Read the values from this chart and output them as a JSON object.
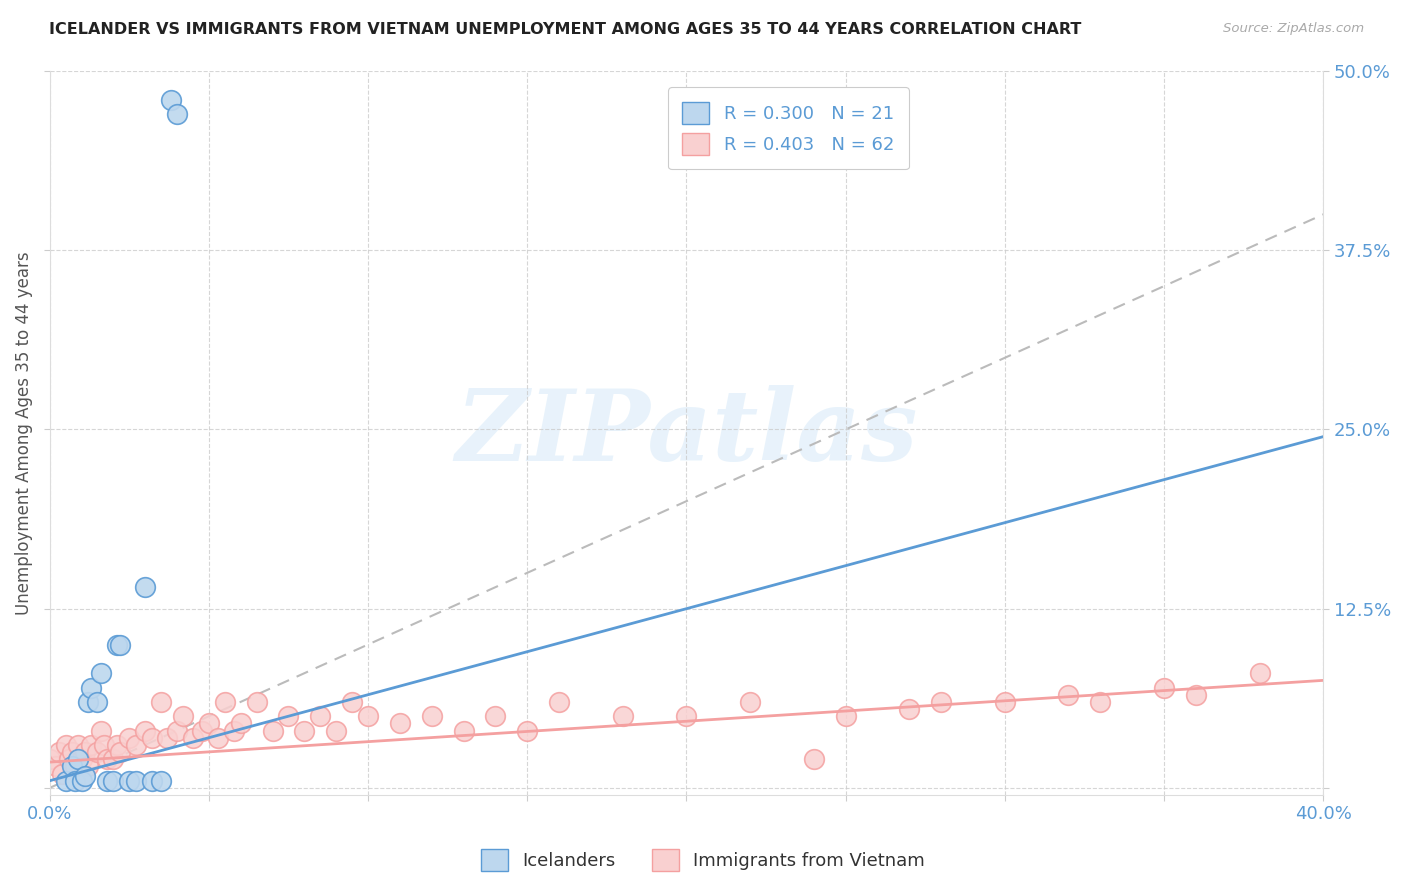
{
  "title": "ICELANDER VS IMMIGRANTS FROM VIETNAM UNEMPLOYMENT AMONG AGES 35 TO 44 YEARS CORRELATION CHART",
  "source": "Source: ZipAtlas.com",
  "ylabel": "Unemployment Among Ages 35 to 44 years",
  "xlim": [
    0.0,
    0.4
  ],
  "ylim": [
    -0.005,
    0.5
  ],
  "yticks": [
    0.0,
    0.125,
    0.25,
    0.375,
    0.5
  ],
  "yticklabels_right": [
    "",
    "12.5%",
    "25.0%",
    "37.5%",
    "50.0%"
  ],
  "grid_color": "#cccccc",
  "background_color": "#ffffff",
  "blue_color": "#5b9bd5",
  "blue_fill": "#bdd7ee",
  "pink_color": "#f4a0a0",
  "pink_fill": "#f9d0d0",
  "legend_text_blue": "R = 0.300   N = 21",
  "legend_text_pink": "R = 0.403   N = 62",
  "watermark": "ZIPatlas",
  "ice_x": [
    0.005,
    0.007,
    0.008,
    0.009,
    0.01,
    0.011,
    0.012,
    0.013,
    0.015,
    0.016,
    0.018,
    0.02,
    0.021,
    0.022,
    0.025,
    0.027,
    0.03,
    0.032,
    0.035,
    0.038,
    0.04
  ],
  "ice_y": [
    0.005,
    0.015,
    0.005,
    0.02,
    0.005,
    0.008,
    0.06,
    0.07,
    0.06,
    0.08,
    0.005,
    0.005,
    0.1,
    0.1,
    0.005,
    0.005,
    0.14,
    0.005,
    0.005,
    0.48,
    0.47
  ],
  "viet_x": [
    0.0,
    0.002,
    0.003,
    0.004,
    0.005,
    0.006,
    0.007,
    0.008,
    0.009,
    0.01,
    0.011,
    0.012,
    0.013,
    0.015,
    0.016,
    0.017,
    0.018,
    0.02,
    0.021,
    0.022,
    0.025,
    0.027,
    0.03,
    0.032,
    0.035,
    0.037,
    0.04,
    0.042,
    0.045,
    0.048,
    0.05,
    0.053,
    0.055,
    0.058,
    0.06,
    0.065,
    0.07,
    0.075,
    0.08,
    0.085,
    0.09,
    0.095,
    0.1,
    0.11,
    0.12,
    0.13,
    0.14,
    0.15,
    0.16,
    0.18,
    0.2,
    0.22,
    0.24,
    0.25,
    0.27,
    0.28,
    0.3,
    0.32,
    0.33,
    0.35,
    0.36,
    0.38
  ],
  "viet_y": [
    0.02,
    0.015,
    0.025,
    0.01,
    0.03,
    0.02,
    0.025,
    0.015,
    0.03,
    0.02,
    0.025,
    0.015,
    0.03,
    0.025,
    0.04,
    0.03,
    0.02,
    0.02,
    0.03,
    0.025,
    0.035,
    0.03,
    0.04,
    0.035,
    0.06,
    0.035,
    0.04,
    0.05,
    0.035,
    0.04,
    0.045,
    0.035,
    0.06,
    0.04,
    0.045,
    0.06,
    0.04,
    0.05,
    0.04,
    0.05,
    0.04,
    0.06,
    0.05,
    0.045,
    0.05,
    0.04,
    0.05,
    0.04,
    0.06,
    0.05,
    0.05,
    0.06,
    0.02,
    0.05,
    0.055,
    0.06,
    0.06,
    0.065,
    0.06,
    0.07,
    0.065,
    0.08
  ],
  "blue_line_x": [
    0.0,
    0.4
  ],
  "blue_line_y": [
    0.005,
    0.245
  ],
  "pink_line_x": [
    0.0,
    0.4
  ],
  "pink_line_y": [
    0.018,
    0.075
  ]
}
